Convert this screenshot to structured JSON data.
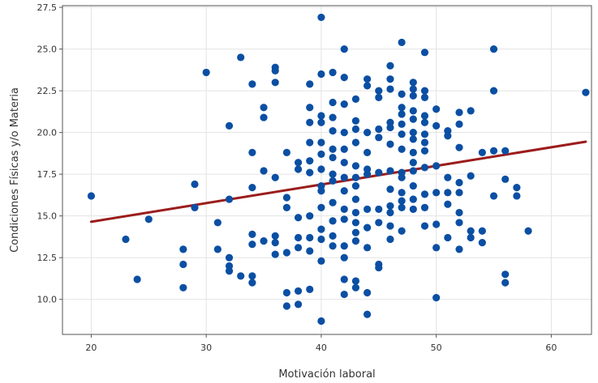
{
  "chart_data": {
    "type": "scatter",
    "title": "",
    "xlabel": "Motivación laboral",
    "ylabel": "Condiciones Físicas y/o Materia",
    "xlim": [
      17.5,
      63.5
    ],
    "ylim": [
      7.9,
      27.6
    ],
    "xticks": [
      "20",
      "30",
      "40",
      "50",
      "60"
    ],
    "xtick_values": [
      20,
      30,
      40,
      50,
      60
    ],
    "yticks": [
      "10.0",
      "12.5",
      "15.0",
      "17.5",
      "20.0",
      "22.5",
      "25.0",
      "27.5"
    ],
    "ytick_values": [
      10.0,
      12.5,
      15.0,
      17.5,
      20.0,
      22.5,
      25.0,
      27.5
    ],
    "grid": true,
    "point_color": "#0b4fa3",
    "trend_line": {
      "x": [
        20,
        63
      ],
      "y": [
        14.65,
        19.45
      ],
      "color": "#9c1c1c"
    },
    "points": [
      [
        20,
        16.2
      ],
      [
        23,
        13.6
      ],
      [
        24,
        11.2
      ],
      [
        25,
        14.8
      ],
      [
        28,
        13.0
      ],
      [
        28,
        12.1
      ],
      [
        28,
        10.7
      ],
      [
        29,
        16.9
      ],
      [
        29,
        15.5
      ],
      [
        30,
        23.6
      ],
      [
        31,
        14.6
      ],
      [
        31,
        13.0
      ],
      [
        32,
        20.4
      ],
      [
        32,
        16.0
      ],
      [
        32,
        12.5
      ],
      [
        32,
        12.0
      ],
      [
        32,
        11.7
      ],
      [
        33,
        24.5
      ],
      [
        33,
        11.4
      ],
      [
        34,
        22.9
      ],
      [
        34,
        18.8
      ],
      [
        34,
        16.7
      ],
      [
        34,
        13.9
      ],
      [
        34,
        13.3
      ],
      [
        34,
        11.4
      ],
      [
        34,
        11.0
      ],
      [
        35,
        21.5
      ],
      [
        35,
        20.9
      ],
      [
        35,
        17.7
      ],
      [
        35,
        13.5
      ],
      [
        36,
        23.9
      ],
      [
        36,
        23.7
      ],
      [
        36,
        23.0
      ],
      [
        36,
        17.3
      ],
      [
        36,
        13.8
      ],
      [
        36,
        13.4
      ],
      [
        36,
        12.7
      ],
      [
        37,
        18.8
      ],
      [
        37,
        16.1
      ],
      [
        37,
        15.5
      ],
      [
        37,
        12.8
      ],
      [
        37,
        10.4
      ],
      [
        37,
        9.6
      ],
      [
        38,
        18.2
      ],
      [
        38,
        17.8
      ],
      [
        38,
        14.9
      ],
      [
        38,
        13.7
      ],
      [
        38,
        13.1
      ],
      [
        38,
        10.5
      ],
      [
        38,
        9.7
      ],
      [
        39,
        22.9
      ],
      [
        39,
        21.5
      ],
      [
        39,
        20.6
      ],
      [
        39,
        19.4
      ],
      [
        39,
        18.3
      ],
      [
        39,
        17.6
      ],
      [
        39,
        15.0
      ],
      [
        39,
        13.7
      ],
      [
        39,
        12.9
      ],
      [
        39,
        10.6
      ],
      [
        40,
        26.9
      ],
      [
        40,
        23.5
      ],
      [
        40,
        21.0
      ],
      [
        40,
        20.6
      ],
      [
        40,
        19.4
      ],
      [
        40,
        18.7
      ],
      [
        40,
        17.8
      ],
      [
        40,
        16.8
      ],
      [
        40,
        16.5
      ],
      [
        40,
        15.5
      ],
      [
        40,
        14.2
      ],
      [
        40,
        13.6
      ],
      [
        40,
        12.3
      ],
      [
        40,
        8.7
      ],
      [
        41,
        23.6
      ],
      [
        41,
        21.8
      ],
      [
        41,
        20.9
      ],
      [
        41,
        20.1
      ],
      [
        41,
        19.0
      ],
      [
        41,
        18.5
      ],
      [
        41,
        17.5
      ],
      [
        41,
        17.1
      ],
      [
        41,
        15.8
      ],
      [
        41,
        14.7
      ],
      [
        41,
        13.8
      ],
      [
        41,
        13.2
      ],
      [
        42,
        25.0
      ],
      [
        42,
        23.3
      ],
      [
        42,
        21.7
      ],
      [
        42,
        20.0
      ],
      [
        42,
        19.0
      ],
      [
        42,
        18.2
      ],
      [
        42,
        17.3
      ],
      [
        42,
        16.5
      ],
      [
        42,
        15.4
      ],
      [
        42,
        14.8
      ],
      [
        42,
        13.2
      ],
      [
        42,
        12.5
      ],
      [
        42,
        11.2
      ],
      [
        42,
        10.3
      ],
      [
        43,
        22.0
      ],
      [
        43,
        20.7
      ],
      [
        43,
        20.2
      ],
      [
        43,
        19.4
      ],
      [
        43,
        18.0
      ],
      [
        43,
        17.3
      ],
      [
        43,
        16.8
      ],
      [
        43,
        16.0
      ],
      [
        43,
        15.2
      ],
      [
        43,
        14.6
      ],
      [
        43,
        14.0
      ],
      [
        43,
        13.5
      ],
      [
        43,
        11.1
      ],
      [
        43,
        10.7
      ],
      [
        44,
        23.2
      ],
      [
        44,
        22.8
      ],
      [
        44,
        20.0
      ],
      [
        44,
        18.8
      ],
      [
        44,
        17.8
      ],
      [
        44,
        17.5
      ],
      [
        44,
        15.4
      ],
      [
        44,
        14.3
      ],
      [
        44,
        13.1
      ],
      [
        44,
        10.4
      ],
      [
        44,
        9.1
      ],
      [
        45,
        22.5
      ],
      [
        45,
        22.1
      ],
      [
        45,
        20.2
      ],
      [
        45,
        19.7
      ],
      [
        45,
        17.6
      ],
      [
        45,
        15.4
      ],
      [
        45,
        14.6
      ],
      [
        45,
        12.1
      ],
      [
        45,
        11.9
      ],
      [
        46,
        24.0
      ],
      [
        46,
        23.2
      ],
      [
        46,
        22.6
      ],
      [
        46,
        20.6
      ],
      [
        46,
        20.3
      ],
      [
        46,
        19.3
      ],
      [
        46,
        17.7
      ],
      [
        46,
        16.6
      ],
      [
        46,
        15.6
      ],
      [
        46,
        15.2
      ],
      [
        46,
        14.4
      ],
      [
        46,
        13.6
      ],
      [
        47,
        25.4
      ],
      [
        47,
        22.3
      ],
      [
        47,
        21.5
      ],
      [
        47,
        21.1
      ],
      [
        47,
        20.5
      ],
      [
        47,
        19.9
      ],
      [
        47,
        19.0
      ],
      [
        47,
        17.6
      ],
      [
        47,
        17.3
      ],
      [
        47,
        16.4
      ],
      [
        47,
        15.9
      ],
      [
        47,
        15.5
      ],
      [
        47,
        14.1
      ],
      [
        48,
        23.0
      ],
      [
        48,
        22.6
      ],
      [
        48,
        22.2
      ],
      [
        48,
        21.3
      ],
      [
        48,
        20.8
      ],
      [
        48,
        20.0
      ],
      [
        48,
        19.6
      ],
      [
        48,
        18.8
      ],
      [
        48,
        18.2
      ],
      [
        48,
        17.7
      ],
      [
        48,
        16.8
      ],
      [
        48,
        16.0
      ],
      [
        48,
        15.4
      ],
      [
        49,
        24.8
      ],
      [
        49,
        22.5
      ],
      [
        49,
        22.1
      ],
      [
        49,
        21.0
      ],
      [
        49,
        20.6
      ],
      [
        49,
        19.9
      ],
      [
        49,
        19.4
      ],
      [
        49,
        18.9
      ],
      [
        49,
        17.9
      ],
      [
        49,
        16.3
      ],
      [
        49,
        15.5
      ],
      [
        49,
        14.4
      ],
      [
        50,
        21.4
      ],
      [
        50,
        20.4
      ],
      [
        50,
        18.0
      ],
      [
        50,
        16.4
      ],
      [
        50,
        14.5
      ],
      [
        50,
        13.1
      ],
      [
        50,
        10.1
      ],
      [
        51,
        20.1
      ],
      [
        51,
        19.8
      ],
      [
        51,
        17.3
      ],
      [
        51,
        16.4
      ],
      [
        51,
        15.7
      ],
      [
        51,
        13.7
      ],
      [
        52,
        21.2
      ],
      [
        52,
        20.5
      ],
      [
        52,
        19.1
      ],
      [
        52,
        17.0
      ],
      [
        52,
        16.4
      ],
      [
        52,
        15.2
      ],
      [
        52,
        14.6
      ],
      [
        52,
        13.0
      ],
      [
        53,
        21.3
      ],
      [
        53,
        17.4
      ],
      [
        53,
        14.1
      ],
      [
        53,
        13.7
      ],
      [
        54,
        18.8
      ],
      [
        54,
        14.1
      ],
      [
        54,
        13.4
      ],
      [
        55,
        25.0
      ],
      [
        55,
        22.5
      ],
      [
        55,
        18.9
      ],
      [
        55,
        16.2
      ],
      [
        56,
        18.9
      ],
      [
        56,
        17.2
      ],
      [
        56,
        11.5
      ],
      [
        56,
        11.0
      ],
      [
        57,
        16.7
      ],
      [
        57,
        16.2
      ],
      [
        58,
        14.1
      ],
      [
        63,
        22.4
      ]
    ]
  }
}
